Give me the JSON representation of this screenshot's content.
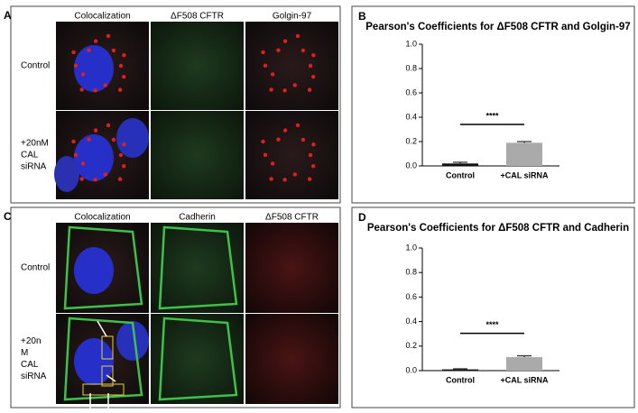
{
  "panels": [
    {
      "label": "A",
      "columns": [
        "Colocalization",
        "ΔF508 CFTR",
        "Golgin-97"
      ],
      "rows": [
        [
          "Control"
        ],
        [
          "+20nM",
          "CAL",
          "siRNA"
        ]
      ]
    },
    {
      "label": "C",
      "columns": [
        "Colocalization",
        "Cadherin",
        "ΔF508 CFTR"
      ],
      "rows": [
        [
          "Control"
        ],
        [
          "+20n",
          "M",
          "CAL",
          "siRNA"
        ]
      ]
    }
  ],
  "chart_data": [
    {
      "type": "bar",
      "label": "B",
      "title": "Pearson's Coefficients for ΔF508 CFTR and Golgin-97",
      "categories": [
        "Control",
        "+CAL siRNA"
      ],
      "values": [
        0.02,
        0.19
      ],
      "errors": [
        0.01,
        0.01
      ],
      "colors": [
        "#111111",
        "#aaaaaa"
      ],
      "annotation": "****",
      "ylim": [
        0,
        1
      ],
      "yticks": [
        {
          "value": 0,
          "label": "0.0"
        },
        0.2,
        0.4,
        0.6,
        0.8,
        {
          "value": 1,
          "label": "1.0"
        }
      ]
    },
    {
      "type": "bar",
      "label": "D",
      "title": "Pearson's Coefficients for ΔF508 CFTR and Cadherin",
      "categories": [
        "Control",
        "+CAL siRNA"
      ],
      "values": [
        0.01,
        0.11
      ],
      "errors": [
        0.005,
        0.01
      ],
      "colors": [
        "#111111",
        "#aaaaaa"
      ],
      "annotation": "****",
      "ylim": [
        0,
        1
      ],
      "yticks": [
        {
          "value": 0,
          "label": "0.0"
        },
        0.2,
        0.4,
        0.6,
        0.8,
        {
          "value": 1,
          "label": "1.0"
        }
      ]
    }
  ]
}
